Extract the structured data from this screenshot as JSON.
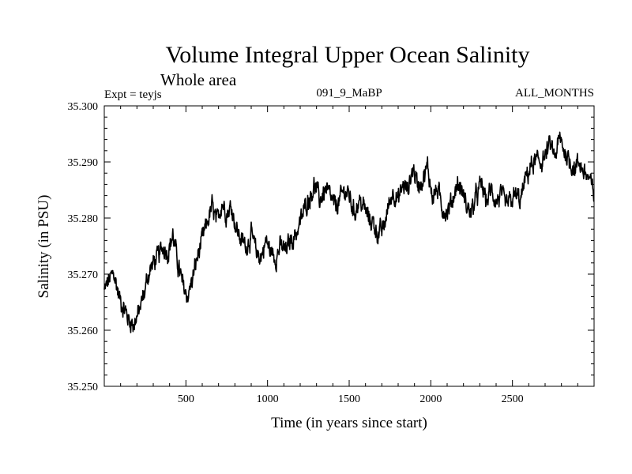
{
  "chart_data": {
    "type": "line",
    "title": "Volume Integral Upper Ocean Salinity",
    "subtitle": "Whole area",
    "experiment_label": "Expt = teyjs",
    "run_label": "091_9_MaBP",
    "months_label": "ALL_MONTHS",
    "xlabel": "Time (in years since start)",
    "ylabel": "Salinity (in PSU)",
    "xlim": [
      0,
      3000
    ],
    "ylim": [
      35.25,
      35.3
    ],
    "x_ticks": [
      500,
      1000,
      1500,
      2000,
      2500
    ],
    "x_tick_labels": [
      "500",
      "1000",
      "1500",
      "2000",
      "2500"
    ],
    "y_ticks": [
      35.25,
      35.26,
      35.27,
      35.28,
      35.29,
      35.3
    ],
    "y_tick_labels": [
      "35.250",
      "35.260",
      "35.270",
      "35.280",
      "35.290",
      "35.300"
    ],
    "grid": false,
    "series": [
      {
        "name": "salinity",
        "color": "#000000",
        "x": [
          0,
          30,
          60,
          90,
          120,
          150,
          180,
          210,
          240,
          270,
          300,
          330,
          360,
          390,
          420,
          450,
          480,
          510,
          540,
          570,
          600,
          630,
          660,
          690,
          720,
          750,
          780,
          810,
          840,
          870,
          900,
          930,
          960,
          990,
          1020,
          1050,
          1080,
          1110,
          1140,
          1170,
          1200,
          1230,
          1260,
          1290,
          1320,
          1350,
          1380,
          1410,
          1440,
          1470,
          1500,
          1530,
          1560,
          1590,
          1620,
          1650,
          1680,
          1710,
          1740,
          1770,
          1800,
          1830,
          1860,
          1890,
          1920,
          1950,
          1980,
          2010,
          2040,
          2070,
          2100,
          2130,
          2160,
          2190,
          2220,
          2250,
          2280,
          2310,
          2340,
          2370,
          2400,
          2430,
          2460,
          2490,
          2520,
          2550,
          2580,
          2610,
          2640,
          2670,
          2700,
          2730,
          2760,
          2790,
          2820,
          2850,
          2880,
          2910,
          2940,
          2970,
          3000
        ],
        "values": [
          35.267,
          35.269,
          35.27,
          35.266,
          35.264,
          35.262,
          35.261,
          35.263,
          35.266,
          35.27,
          35.272,
          35.273,
          35.275,
          35.274,
          35.277,
          35.272,
          35.268,
          35.266,
          35.269,
          35.273,
          35.276,
          35.279,
          35.282,
          35.279,
          35.283,
          35.281,
          35.282,
          35.278,
          35.276,
          35.275,
          35.277,
          35.274,
          35.273,
          35.276,
          35.274,
          35.273,
          35.275,
          35.274,
          35.276,
          35.277,
          35.279,
          35.282,
          35.284,
          35.286,
          35.283,
          35.285,
          35.284,
          35.282,
          35.283,
          35.285,
          35.284,
          35.281,
          35.283,
          35.282,
          35.28,
          35.279,
          35.277,
          35.278,
          35.282,
          35.285,
          35.283,
          35.286,
          35.285,
          35.289,
          35.286,
          35.287,
          35.289,
          35.284,
          35.285,
          35.282,
          35.281,
          35.283,
          35.286,
          35.285,
          35.282,
          35.281,
          35.284,
          35.286,
          35.283,
          35.285,
          35.283,
          35.284,
          35.282,
          35.283,
          35.284,
          35.283,
          35.287,
          35.289,
          35.29,
          35.29,
          35.291,
          35.293,
          35.291,
          35.294,
          35.292,
          35.29,
          35.289,
          35.29,
          35.288,
          35.287,
          35.284
        ]
      }
    ]
  }
}
